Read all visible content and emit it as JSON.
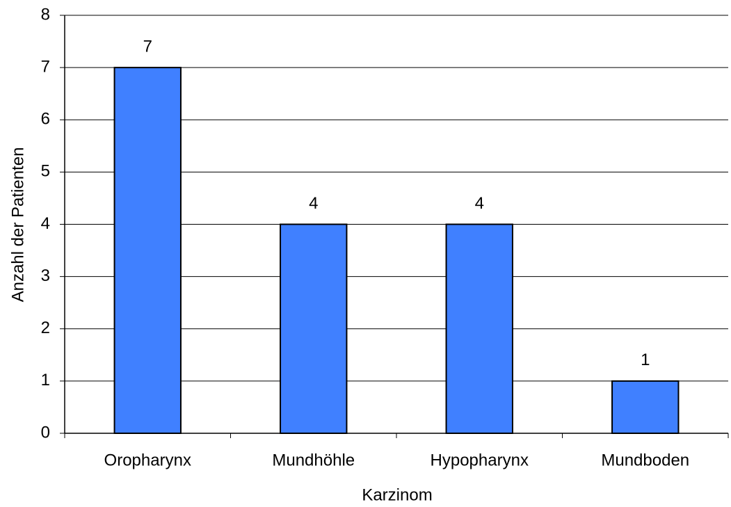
{
  "chart_data": {
    "type": "bar",
    "x_label": "Karzinom",
    "y_label": "Anzahl der Patienten",
    "categories": [
      "Oropharynx",
      "Mundhöhle",
      "Hypopharynx",
      "Mundboden"
    ],
    "values": [
      7,
      4,
      4,
      1
    ],
    "color": "#4080ff",
    "ylim": [
      0,
      8
    ],
    "yticks": [
      0,
      1,
      2,
      3,
      4,
      5,
      6,
      7,
      8
    ],
    "grid": true
  }
}
